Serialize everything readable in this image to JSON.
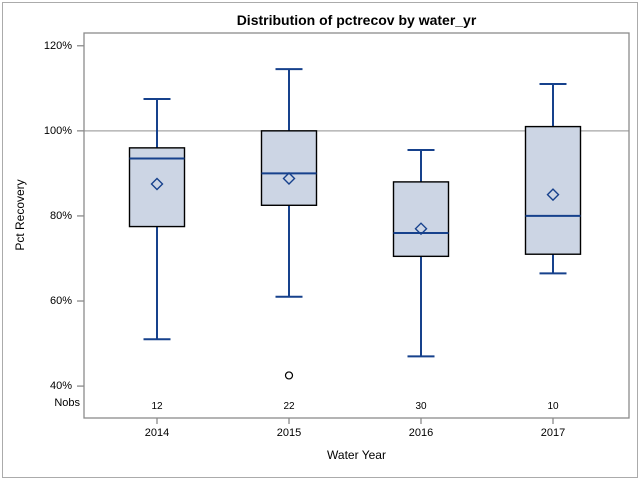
{
  "colors": {
    "box_fill": "#ccd5e4",
    "box_stroke": "#000000",
    "whisker": "#16418c",
    "mean_marker": "#16418c",
    "frame": "#8b8b8b",
    "refline": "#a6a6a6",
    "outlier_stroke": "#000000",
    "text": "#000000",
    "background": "#ffffff"
  },
  "chart_data": {
    "type": "box",
    "title": "Distribution of pctrecov by water_yr",
    "xlabel": "Water Year",
    "ylabel": "Pct Recovery",
    "nobs_label": "Nobs",
    "categories": [
      "2014",
      "2015",
      "2016",
      "2017"
    ],
    "nobs": [
      "12",
      "22",
      "30",
      "10"
    ],
    "ytick_labels": [
      "120%",
      "100%",
      "80%",
      "60%",
      "40%"
    ],
    "yticks": [
      120,
      100,
      80,
      60,
      40
    ],
    "ylim": [
      32.5,
      123
    ],
    "refline": 100,
    "grid": "off",
    "legend": "off",
    "series": [
      {
        "category": "2014",
        "n": 12,
        "low": 51,
        "q1": 77.5,
        "median": 93.5,
        "q3": 96,
        "high": 107.5,
        "mean": 87.5,
        "outliers": []
      },
      {
        "category": "2015",
        "n": 22,
        "low": 61,
        "q1": 82.5,
        "median": 90,
        "q3": 100,
        "high": 114.5,
        "mean": 88.8,
        "outliers": [
          42.5
        ]
      },
      {
        "category": "2016",
        "n": 30,
        "low": 47,
        "q1": 70.5,
        "median": 76,
        "q3": 88,
        "high": 95.5,
        "mean": 77,
        "outliers": []
      },
      {
        "category": "2017",
        "n": 10,
        "low": 66.5,
        "q1": 71,
        "median": 80,
        "q3": 101,
        "high": 111,
        "mean": 85,
        "outliers": []
      }
    ]
  }
}
